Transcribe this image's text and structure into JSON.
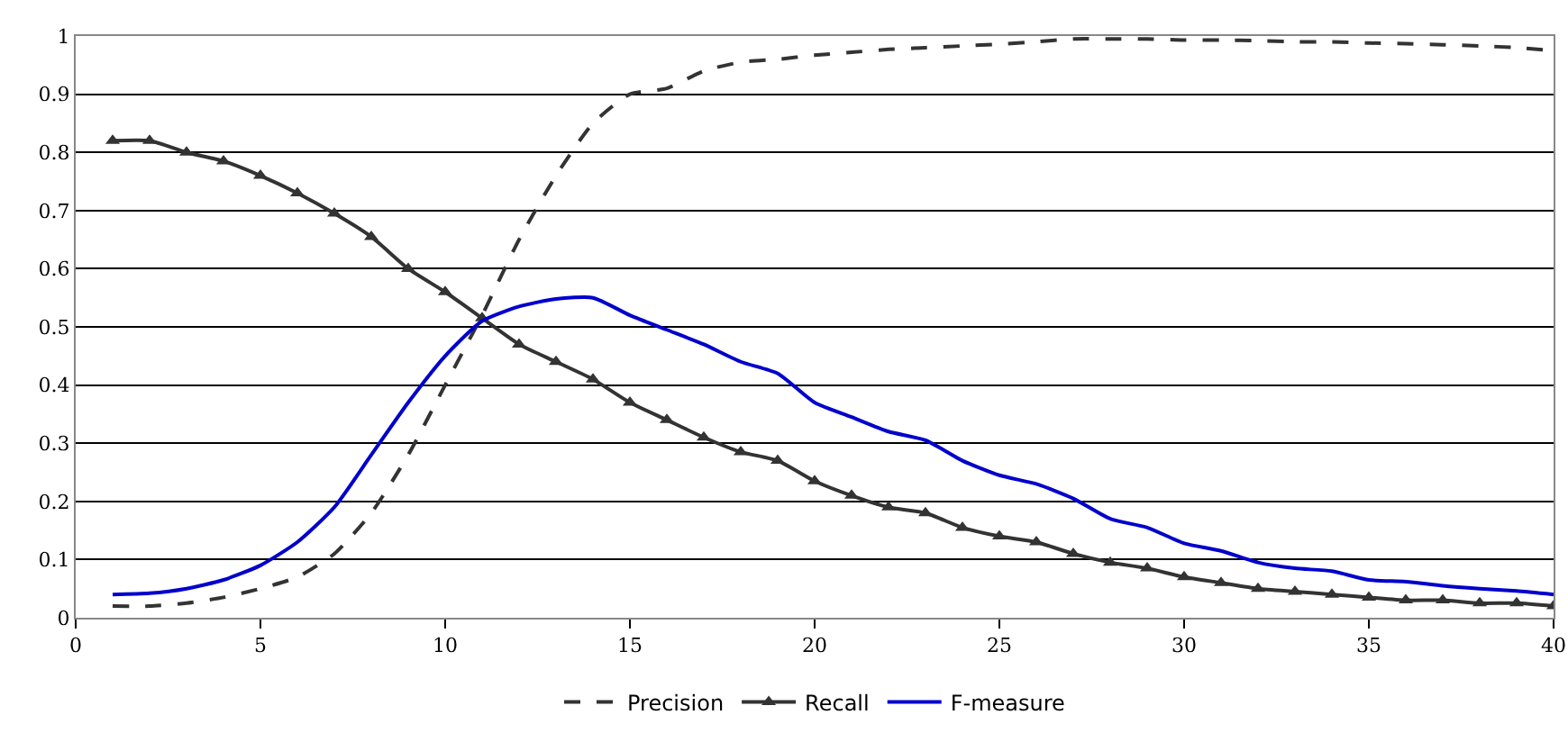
{
  "chart_data": {
    "type": "line",
    "x": [
      1,
      2,
      3,
      4,
      5,
      6,
      7,
      8,
      9,
      10,
      11,
      12,
      13,
      14,
      15,
      16,
      17,
      18,
      19,
      20,
      21,
      22,
      23,
      24,
      25,
      26,
      27,
      28,
      29,
      30,
      31,
      32,
      33,
      34,
      35,
      36,
      37,
      38,
      39,
      40
    ],
    "series": [
      {
        "name": "Precision",
        "color": "#333333",
        "line_style": "dashed",
        "marker": "none",
        "values": [
          0.02,
          0.02,
          0.025,
          0.035,
          0.05,
          0.07,
          0.11,
          0.18,
          0.28,
          0.4,
          0.52,
          0.65,
          0.76,
          0.85,
          0.9,
          0.91,
          0.94,
          0.955,
          0.96,
          0.967,
          0.972,
          0.977,
          0.98,
          0.983,
          0.986,
          0.99,
          0.995,
          0.995,
          0.995,
          0.993,
          0.993,
          0.992,
          0.99,
          0.99,
          0.988,
          0.987,
          0.985,
          0.983,
          0.98,
          0.975
        ]
      },
      {
        "name": "Recall",
        "color": "#333333",
        "line_style": "solid",
        "marker": "triangle",
        "values": [
          0.82,
          0.82,
          0.8,
          0.785,
          0.76,
          0.73,
          0.695,
          0.655,
          0.6,
          0.56,
          0.515,
          0.47,
          0.44,
          0.41,
          0.37,
          0.34,
          0.31,
          0.285,
          0.27,
          0.235,
          0.21,
          0.19,
          0.18,
          0.155,
          0.14,
          0.13,
          0.11,
          0.095,
          0.085,
          0.07,
          0.06,
          0.05,
          0.045,
          0.04,
          0.035,
          0.03,
          0.03,
          0.025,
          0.025,
          0.02
        ]
      },
      {
        "name": "F-measure",
        "color": "#0000cc",
        "line_style": "solid",
        "marker": "none",
        "values": [
          0.04,
          0.042,
          0.05,
          0.065,
          0.09,
          0.13,
          0.19,
          0.28,
          0.37,
          0.45,
          0.51,
          0.535,
          0.548,
          0.55,
          0.52,
          0.495,
          0.47,
          0.44,
          0.42,
          0.37,
          0.345,
          0.32,
          0.305,
          0.27,
          0.245,
          0.23,
          0.205,
          0.17,
          0.155,
          0.128,
          0.115,
          0.095,
          0.085,
          0.08,
          0.065,
          0.062,
          0.055,
          0.05,
          0.046,
          0.04
        ]
      }
    ],
    "xlim": [
      0,
      40
    ],
    "xticks": [
      0,
      5,
      10,
      15,
      20,
      25,
      30,
      35,
      40
    ],
    "ylim": [
      0,
      1
    ],
    "yticks": [
      0,
      0.1,
      0.2,
      0.3,
      0.4,
      0.5,
      0.6,
      0.7,
      0.8,
      0.9,
      1
    ],
    "grid": "y",
    "legend": "bottom"
  }
}
